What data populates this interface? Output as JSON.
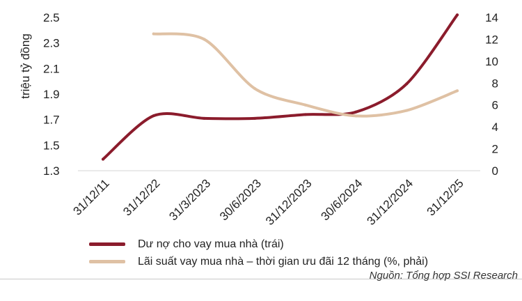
{
  "chart_data": {
    "type": "line",
    "categories": [
      "31/12/11",
      "31/12/22",
      "31/3/2023",
      "30/6/2023",
      "31/12/2023",
      "30/6/2024",
      "31/12/2024",
      "31/12/25"
    ],
    "ylabel": "triệu tỷ đồng",
    "ylim_left": [
      1.3,
      2.5
    ],
    "yticks_left": [
      "1.3",
      "1.5",
      "1.7",
      "1.9",
      "2.1",
      "2.3",
      "2.5"
    ],
    "ylim_right": [
      0,
      14
    ],
    "yticks_right": [
      "0",
      "2",
      "4",
      "6",
      "8",
      "10",
      "12",
      "14"
    ],
    "grid": false,
    "legend_position": "bottom",
    "series": [
      {
        "name": "Dư nợ cho vay mua nhà (trái)",
        "axis": "left",
        "color": "#8b1c2c",
        "values": [
          1.39,
          1.73,
          1.71,
          1.71,
          1.74,
          1.76,
          1.98,
          2.52
        ]
      },
      {
        "name": "Lãi suất vay mua nhà – thời gian ưu đãi 12 tháng (%, phải)",
        "axis": "right",
        "color": "#dfc1a4",
        "values": [
          null,
          12.5,
          12.0,
          7.5,
          6.0,
          5.0,
          5.5,
          7.3
        ]
      }
    ]
  },
  "source": "Nguồn: Tổng hợp SSI Research"
}
